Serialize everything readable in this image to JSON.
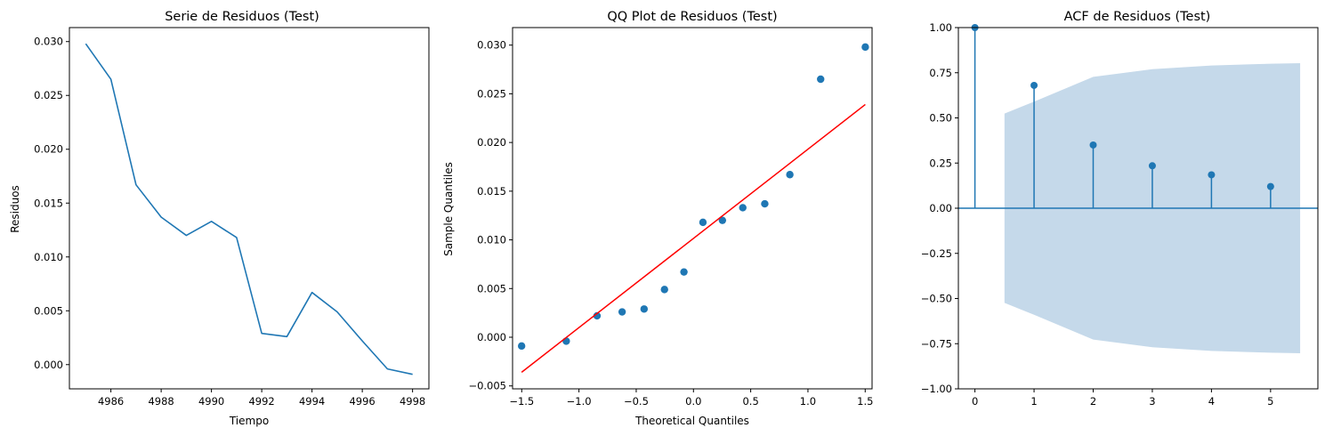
{
  "chart_data": [
    {
      "type": "line",
      "title": "Serie de Residuos (Test)",
      "xlabel": "Tiempo",
      "ylabel": "Residuos",
      "xlim": [
        4984.35,
        4998.65
      ],
      "ylim": [
        -0.00225,
        0.0313
      ],
      "xticks": [
        4986,
        4988,
        4990,
        4992,
        4994,
        4996,
        4998
      ],
      "xtick_labels": [
        "4986",
        "4988",
        "4990",
        "4992",
        "4994",
        "4996",
        "4998"
      ],
      "yticks": [
        0.0,
        0.005,
        0.01,
        0.015,
        0.02,
        0.025,
        0.03
      ],
      "ytick_labels": [
        "0.000",
        "0.005",
        "0.010",
        "0.015",
        "0.020",
        "0.025",
        "0.030"
      ],
      "color": "#1f77b4",
      "series": [
        {
          "x": [
            4985,
            4986,
            4987,
            4988,
            4989,
            4990,
            4991,
            4992,
            4993,
            4994,
            4995,
            4996,
            4997,
            4998
          ],
          "values": [
            0.0298,
            0.0265,
            0.0167,
            0.0137,
            0.012,
            0.0133,
            0.0118,
            0.0029,
            0.0026,
            0.0067,
            0.0049,
            0.0022,
            -0.0004,
            -0.0009
          ]
        }
      ]
    },
    {
      "type": "scatter",
      "title": "QQ Plot de Residuos (Test)",
      "xlabel": "Theoretical Quantiles",
      "ylabel": "Sample Quantiles",
      "xlim": [
        -1.58,
        1.56
      ],
      "ylim": [
        -0.0053,
        0.0318
      ],
      "xticks": [
        -1.5,
        -1.0,
        -0.5,
        0.0,
        0.5,
        1.0,
        1.5
      ],
      "xtick_labels": [
        "−1.5",
        "−1.0",
        "−0.5",
        "0.0",
        "0.5",
        "1.0",
        "1.5"
      ],
      "yticks": [
        -0.005,
        0.0,
        0.005,
        0.01,
        0.015,
        0.02,
        0.025,
        0.03
      ],
      "ytick_labels": [
        "−0.005",
        "0.000",
        "0.005",
        "0.010",
        "0.015",
        "0.020",
        "0.025",
        "0.030"
      ],
      "point_color": "#1f77b4",
      "line_color": "#ff0000",
      "points": {
        "x": [
          -1.501,
          -1.111,
          -0.842,
          -0.623,
          -0.431,
          -0.253,
          -0.083,
          0.083,
          0.253,
          0.431,
          0.623,
          0.842,
          1.111,
          1.501
        ],
        "y": [
          -0.0009,
          -0.0004,
          0.0022,
          0.0026,
          0.0029,
          0.0049,
          0.0067,
          0.0118,
          0.012,
          0.0133,
          0.0137,
          0.0167,
          0.0265,
          0.0298
        ]
      },
      "reference_line": {
        "x": [
          -1.501,
          1.501
        ],
        "y": [
          -0.0036,
          0.0239
        ]
      }
    },
    {
      "type": "bar",
      "title": "ACF de Residuos (Test)",
      "xlim": [
        -0.28,
        5.8
      ],
      "ylim": [
        -1.0,
        1.0
      ],
      "xticks": [
        0,
        1,
        2,
        3,
        4,
        5
      ],
      "xtick_labels": [
        "0",
        "1",
        "2",
        "3",
        "4",
        "5"
      ],
      "yticks": [
        -1.0,
        -0.75,
        -0.5,
        -0.25,
        0.0,
        0.25,
        0.5,
        0.75,
        1.0
      ],
      "ytick_labels": [
        "−1.00",
        "−0.75",
        "−0.50",
        "−0.25",
        "0.00",
        "0.25",
        "0.50",
        "0.75",
        "1.00"
      ],
      "color": "#1f77b4",
      "band_color": "#c5d9ea",
      "lags": [
        0,
        1,
        2,
        3,
        4,
        5
      ],
      "values": [
        1.0,
        0.68,
        0.35,
        0.235,
        0.185,
        0.12
      ],
      "confidence_band": {
        "x": [
          0.5,
          1,
          2,
          3,
          4,
          5,
          5.5
        ],
        "upper": [
          0.524,
          0.59,
          0.727,
          0.77,
          0.79,
          0.8,
          0.803
        ],
        "lower": [
          -0.524,
          -0.59,
          -0.727,
          -0.77,
          -0.79,
          -0.8,
          -0.803
        ]
      }
    }
  ]
}
